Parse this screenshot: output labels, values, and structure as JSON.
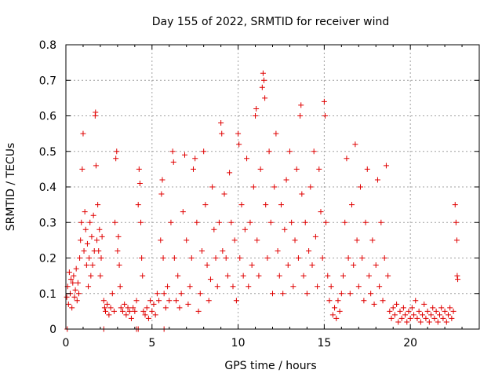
{
  "chart_data": {
    "type": "scatter",
    "title": "Day 155 of 2022, SRMTID for receiver wind",
    "xlabel": "GPS time / hours",
    "ylabel": "SRMTID / TECUs",
    "xlim": [
      0,
      24
    ],
    "ylim": [
      0,
      0.8
    ],
    "x_ticks": [
      "0",
      "5",
      "10",
      "15",
      "20"
    ],
    "y_ticks": [
      "0",
      "0.1",
      "0.2",
      "0.3",
      "0.4",
      "0.5",
      "0.6",
      "0.7",
      "0.8"
    ],
    "grid": true,
    "marker": "plus",
    "color": "#e00000",
    "series": [
      {
        "name": "SRMTID",
        "points": [
          [
            0.05,
            0.09
          ],
          [
            0.1,
            0.12
          ],
          [
            0.15,
            0.07
          ],
          [
            0.2,
            0.16
          ],
          [
            0.25,
            0.1
          ],
          [
            0.3,
            0.14
          ],
          [
            0.35,
            0.06
          ],
          [
            0.4,
            0.13
          ],
          [
            0.45,
            0.15
          ],
          [
            0.5,
            0.09
          ],
          [
            0.55,
            0.11
          ],
          [
            0.6,
            0.17
          ],
          [
            0.65,
            0.08
          ],
          [
            0.7,
            0.13
          ],
          [
            0.75,
            0.1
          ],
          [
            0.8,
            0.2
          ],
          [
            0.85,
            0.25
          ],
          [
            0.9,
            0.3
          ],
          [
            0.95,
            0.45
          ],
          [
            1.0,
            0.55
          ],
          [
            1.05,
            0.22
          ],
          [
            1.1,
            0.33
          ],
          [
            1.15,
            0.28
          ],
          [
            1.2,
            0.18
          ],
          [
            1.25,
            0.24
          ],
          [
            1.3,
            0.12
          ],
          [
            1.35,
            0.2
          ],
          [
            1.4,
            0.3
          ],
          [
            1.45,
            0.15
          ],
          [
            1.5,
            0.26
          ],
          [
            1.55,
            0.18
          ],
          [
            1.6,
            0.32
          ],
          [
            1.65,
            0.22
          ],
          [
            1.7,
            0.6
          ],
          [
            1.72,
            0.61
          ],
          [
            1.75,
            0.46
          ],
          [
            1.8,
            0.25
          ],
          [
            1.85,
            0.35
          ],
          [
            1.9,
            0.22
          ],
          [
            1.95,
            0.28
          ],
          [
            2.0,
            0.15
          ],
          [
            2.05,
            0.2
          ],
          [
            2.1,
            0.26
          ],
          [
            2.2,
            0.08
          ],
          [
            2.25,
            0.06
          ],
          [
            2.3,
            0.05
          ],
          [
            2.4,
            0.07
          ],
          [
            2.5,
            0.04
          ],
          [
            2.6,
            0.06
          ],
          [
            2.7,
            0.1
          ],
          [
            2.8,
            0.05
          ],
          [
            2.85,
            0.3
          ],
          [
            2.9,
            0.48
          ],
          [
            2.95,
            0.5
          ],
          [
            3.0,
            0.22
          ],
          [
            3.05,
            0.26
          ],
          [
            3.1,
            0.18
          ],
          [
            3.15,
            0.12
          ],
          [
            3.2,
            0.06
          ],
          [
            3.3,
            0.05
          ],
          [
            3.4,
            0.07
          ],
          [
            3.5,
            0.04
          ],
          [
            3.6,
            0.06
          ],
          [
            3.7,
            0.05
          ],
          [
            3.8,
            0.03
          ],
          [
            3.9,
            0.06
          ],
          [
            4.0,
            0.05
          ],
          [
            4.1,
            0.08
          ],
          [
            4.2,
            0.35
          ],
          [
            4.25,
            0.45
          ],
          [
            4.3,
            0.41
          ],
          [
            4.35,
            0.3
          ],
          [
            4.4,
            0.2
          ],
          [
            4.45,
            0.15
          ],
          [
            4.5,
            0.05
          ],
          [
            4.6,
            0.04
          ],
          [
            4.7,
            0.06
          ],
          [
            4.8,
            0.03
          ],
          [
            4.9,
            0.08
          ],
          [
            5.0,
            0.05
          ],
          [
            5.1,
            0.07
          ],
          [
            5.2,
            0.04
          ],
          [
            5.3,
            0.1
          ],
          [
            5.4,
            0.08
          ],
          [
            5.5,
            0.25
          ],
          [
            5.55,
            0.38
          ],
          [
            5.6,
            0.42
          ],
          [
            5.65,
            0.2
          ],
          [
            5.7,
            0.1
          ],
          [
            5.8,
            0.06
          ],
          [
            5.9,
            0.12
          ],
          [
            6.0,
            0.08
          ],
          [
            6.1,
            0.3
          ],
          [
            6.2,
            0.5
          ],
          [
            6.25,
            0.47
          ],
          [
            6.3,
            0.2
          ],
          [
            6.4,
            0.08
          ],
          [
            6.5,
            0.15
          ],
          [
            6.6,
            0.06
          ],
          [
            6.7,
            0.1
          ],
          [
            6.8,
            0.33
          ],
          [
            6.9,
            0.49
          ],
          [
            7.0,
            0.25
          ],
          [
            7.1,
            0.07
          ],
          [
            7.2,
            0.12
          ],
          [
            7.3,
            0.2
          ],
          [
            7.4,
            0.45
          ],
          [
            7.5,
            0.48
          ],
          [
            7.6,
            0.3
          ],
          [
            7.7,
            0.05
          ],
          [
            7.8,
            0.1
          ],
          [
            7.9,
            0.22
          ],
          [
            8.0,
            0.5
          ],
          [
            8.1,
            0.35
          ],
          [
            8.2,
            0.18
          ],
          [
            8.3,
            0.08
          ],
          [
            8.4,
            0.14
          ],
          [
            8.5,
            0.4
          ],
          [
            8.6,
            0.28
          ],
          [
            8.7,
            0.2
          ],
          [
            8.8,
            0.12
          ],
          [
            8.9,
            0.3
          ],
          [
            9.0,
            0.58
          ],
          [
            9.05,
            0.55
          ],
          [
            9.1,
            0.22
          ],
          [
            9.2,
            0.38
          ],
          [
            9.3,
            0.2
          ],
          [
            9.4,
            0.15
          ],
          [
            9.5,
            0.44
          ],
          [
            9.6,
            0.3
          ],
          [
            9.7,
            0.12
          ],
          [
            9.8,
            0.25
          ],
          [
            9.9,
            0.08
          ],
          [
            10.0,
            0.55
          ],
          [
            10.05,
            0.52
          ],
          [
            10.1,
            0.2
          ],
          [
            10.2,
            0.35
          ],
          [
            10.3,
            0.15
          ],
          [
            10.4,
            0.28
          ],
          [
            10.5,
            0.48
          ],
          [
            10.6,
            0.12
          ],
          [
            10.7,
            0.3
          ],
          [
            10.8,
            0.18
          ],
          [
            10.9,
            0.4
          ],
          [
            11.0,
            0.6
          ],
          [
            11.05,
            0.62
          ],
          [
            11.1,
            0.25
          ],
          [
            11.2,
            0.15
          ],
          [
            11.3,
            0.45
          ],
          [
            11.4,
            0.68
          ],
          [
            11.45,
            0.72
          ],
          [
            11.5,
            0.7
          ],
          [
            11.55,
            0.65
          ],
          [
            11.6,
            0.35
          ],
          [
            11.7,
            0.2
          ],
          [
            11.8,
            0.5
          ],
          [
            11.9,
            0.3
          ],
          [
            12.0,
            0.1
          ],
          [
            12.1,
            0.4
          ],
          [
            12.2,
            0.55
          ],
          [
            12.3,
            0.22
          ],
          [
            12.4,
            0.15
          ],
          [
            12.5,
            0.35
          ],
          [
            12.6,
            0.1
          ],
          [
            12.7,
            0.28
          ],
          [
            12.8,
            0.42
          ],
          [
            12.9,
            0.18
          ],
          [
            13.0,
            0.5
          ],
          [
            13.1,
            0.3
          ],
          [
            13.2,
            0.12
          ],
          [
            13.3,
            0.25
          ],
          [
            13.4,
            0.45
          ],
          [
            13.5,
            0.2
          ],
          [
            13.6,
            0.6
          ],
          [
            13.65,
            0.63
          ],
          [
            13.7,
            0.38
          ],
          [
            13.8,
            0.15
          ],
          [
            13.9,
            0.3
          ],
          [
            14.0,
            0.1
          ],
          [
            14.1,
            0.22
          ],
          [
            14.2,
            0.4
          ],
          [
            14.3,
            0.18
          ],
          [
            14.4,
            0.5
          ],
          [
            14.5,
            0.26
          ],
          [
            14.6,
            0.12
          ],
          [
            14.7,
            0.45
          ],
          [
            14.8,
            0.33
          ],
          [
            14.9,
            0.2
          ],
          [
            15.0,
            0.64
          ],
          [
            15.05,
            0.6
          ],
          [
            15.1,
            0.3
          ],
          [
            15.2,
            0.15
          ],
          [
            15.3,
            0.08
          ],
          [
            15.4,
            0.12
          ],
          [
            15.5,
            0.04
          ],
          [
            15.6,
            0.06
          ],
          [
            15.7,
            0.03
          ],
          [
            15.8,
            0.08
          ],
          [
            15.9,
            0.05
          ],
          [
            16.0,
            0.1
          ],
          [
            16.1,
            0.15
          ],
          [
            16.2,
            0.3
          ],
          [
            16.3,
            0.48
          ],
          [
            16.4,
            0.2
          ],
          [
            16.5,
            0.1
          ],
          [
            16.6,
            0.35
          ],
          [
            16.7,
            0.18
          ],
          [
            16.8,
            0.52
          ],
          [
            16.9,
            0.25
          ],
          [
            17.0,
            0.12
          ],
          [
            17.1,
            0.4
          ],
          [
            17.2,
            0.2
          ],
          [
            17.3,
            0.08
          ],
          [
            17.4,
            0.3
          ],
          [
            17.5,
            0.45
          ],
          [
            17.6,
            0.15
          ],
          [
            17.7,
            0.1
          ],
          [
            17.8,
            0.25
          ],
          [
            17.9,
            0.07
          ],
          [
            18.0,
            0.18
          ],
          [
            18.1,
            0.42
          ],
          [
            18.2,
            0.12
          ],
          [
            18.3,
            0.3
          ],
          [
            18.4,
            0.08
          ],
          [
            18.5,
            0.2
          ],
          [
            18.6,
            0.46
          ],
          [
            18.7,
            0.15
          ],
          [
            18.8,
            0.05
          ],
          [
            18.9,
            0.03
          ],
          [
            19.0,
            0.06
          ],
          [
            19.1,
            0.04
          ],
          [
            19.2,
            0.07
          ],
          [
            19.3,
            0.02
          ],
          [
            19.4,
            0.05
          ],
          [
            19.5,
            0.03
          ],
          [
            19.6,
            0.06
          ],
          [
            19.7,
            0.04
          ],
          [
            19.8,
            0.02
          ],
          [
            19.9,
            0.05
          ],
          [
            20.0,
            0.03
          ],
          [
            20.1,
            0.06
          ],
          [
            20.2,
            0.04
          ],
          [
            20.3,
            0.08
          ],
          [
            20.4,
            0.03
          ],
          [
            20.5,
            0.05
          ],
          [
            20.6,
            0.02
          ],
          [
            20.7,
            0.04
          ],
          [
            20.8,
            0.07
          ],
          [
            20.9,
            0.03
          ],
          [
            21.0,
            0.05
          ],
          [
            21.1,
            0.02
          ],
          [
            21.2,
            0.04
          ],
          [
            21.3,
            0.06
          ],
          [
            21.4,
            0.03
          ],
          [
            21.5,
            0.05
          ],
          [
            21.6,
            0.02
          ],
          [
            21.7,
            0.04
          ],
          [
            21.8,
            0.06
          ],
          [
            21.9,
            0.03
          ],
          [
            22.0,
            0.05
          ],
          [
            22.1,
            0.02
          ],
          [
            22.2,
            0.04
          ],
          [
            22.3,
            0.06
          ],
          [
            22.4,
            0.03
          ],
          [
            22.5,
            0.05
          ],
          [
            22.6,
            0.35
          ],
          [
            22.65,
            0.3
          ],
          [
            22.7,
            0.25
          ],
          [
            22.72,
            0.15
          ],
          [
            22.75,
            0.14
          ],
          [
            0.08,
            0.0
          ],
          [
            2.2,
            0.0
          ],
          [
            4.1,
            0.0
          ],
          [
            4.2,
            0.0
          ],
          [
            5.7,
            0.0
          ]
        ]
      }
    ]
  }
}
